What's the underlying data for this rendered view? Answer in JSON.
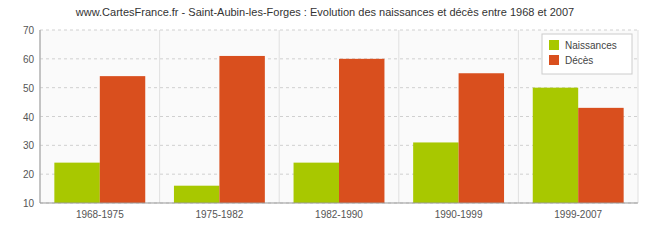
{
  "chart_data": {
    "type": "bar",
    "title": "www.CartesFrance.fr - Saint-Aubin-les-Forges : Evolution des naissances et décès entre 1968 et 2007",
    "categories": [
      "1968-1975",
      "1975-1982",
      "1982-1990",
      "1990-1999",
      "1999-2007"
    ],
    "series": [
      {
        "name": "Naissances",
        "color": "#a8c800",
        "values": [
          24,
          16,
          24,
          31,
          50
        ]
      },
      {
        "name": "Décès",
        "color": "#d94f1e",
        "values": [
          54,
          61,
          60,
          55,
          43
        ]
      }
    ],
    "ylim": [
      10,
      70
    ],
    "yticks": [
      10,
      20,
      30,
      40,
      50,
      60,
      70
    ],
    "grid": true,
    "legend": "upper right"
  }
}
